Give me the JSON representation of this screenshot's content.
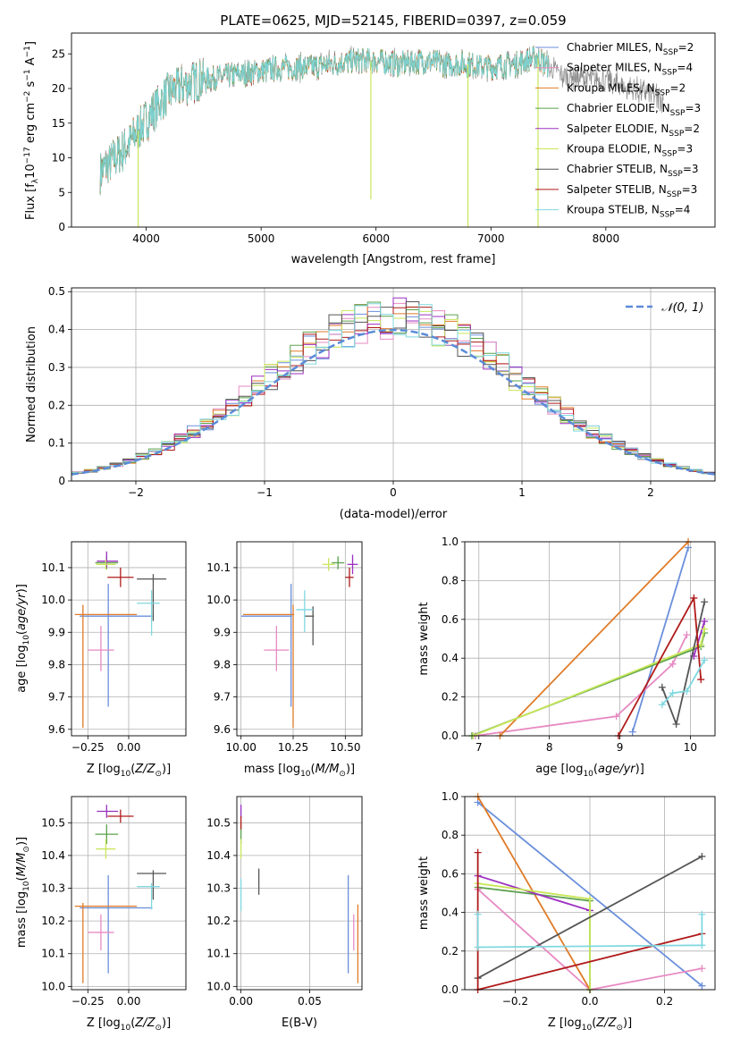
{
  "figure_title": "PLATE=0625, MJD=52145, FIBERID=0397, z=0.059",
  "colors": {
    "chabrier_miles": "#6a8fdb",
    "salpeter_miles": "#e78ac3",
    "kroupa_miles": "#e07b28",
    "chabrier_elodie": "#5aa04a",
    "salpeter_elodie": "#9b30c0",
    "kroupa_elodie": "#c8e65a",
    "chabrier_stelib": "#555555",
    "salpeter_stelib": "#b01a1a",
    "kroupa_stelib": "#7fd8e0",
    "gaussian": "#5b8bd8",
    "data_grey": "#808080"
  },
  "chart_data": [
    {
      "id": "spectrum",
      "type": "line",
      "xlabel": "wavelength [Angstrom, rest frame]",
      "ylabel": "Flux [f",
      "xlim": [
        3350,
        8950
      ],
      "ylim": [
        0,
        28
      ],
      "xticks": [
        4000,
        5000,
        6000,
        7000,
        8000
      ],
      "yticks": [
        0,
        5,
        10,
        15,
        20,
        25
      ],
      "legend": "upper right",
      "legend_entries": [
        {
          "name": "Chabrier MILES",
          "suffix": "=2"
        },
        {
          "name": "Salpeter MILES",
          "suffix": "=4"
        },
        {
          "name": "Kroupa MILES",
          "suffix": "=2"
        },
        {
          "name": "Chabrier ELODIE",
          "suffix": "=3"
        },
        {
          "name": "Salpeter ELODIE",
          "suffix": "=2"
        },
        {
          "name": "Kroupa ELODIE",
          "suffix": "=3"
        },
        {
          "name": "Chabrier STELIB",
          "suffix": "=3"
        },
        {
          "name": "Salpeter STELIB",
          "suffix": "=3"
        },
        {
          "name": "Kroupa STELIB",
          "suffix": "=4"
        }
      ],
      "continuum": {
        "x": [
          3600,
          3800,
          4000,
          4200,
          4400,
          4600,
          4800,
          5000,
          5200,
          5400,
          5600,
          5800,
          6000,
          6200,
          6400,
          6600,
          6800,
          7000,
          7200,
          7400,
          7600,
          7800,
          8000,
          8200,
          8400,
          8500
        ],
        "y": [
          8,
          11,
          15.5,
          19.5,
          21,
          21.5,
          22,
          22.5,
          23,
          23,
          23.5,
          24,
          24,
          23.5,
          24,
          23.5,
          23.5,
          23,
          23.5,
          24.5,
          22,
          21.5,
          21,
          20,
          19,
          18.5
        ]
      },
      "spikes": [
        {
          "x": 3930,
          "ymin": 0
        },
        {
          "x": 5955,
          "ymin": 4
        },
        {
          "x": 6800,
          "ymin": 0
        },
        {
          "x": 7410,
          "ymin": 0
        }
      ]
    },
    {
      "id": "residual_histogram",
      "type": "histogram",
      "xlabel": "(data-model)/error",
      "ylabel": "Normed distribution",
      "xlim": [
        -2.5,
        2.5
      ],
      "ylim": [
        0,
        0.51
      ],
      "xticks": [
        -2,
        -1,
        0,
        1,
        2
      ],
      "yticks": [
        0.0,
        0.1,
        0.2,
        0.3,
        0.4,
        0.5
      ],
      "grid": true,
      "legend": "upper right",
      "legend_label": "𝒩(0, 1)",
      "bin_width": 0.1
    },
    {
      "id": "age_vs_Z",
      "type": "scatter",
      "xlabel": "Z [log",
      "ylabel": "age  [log",
      "xlim": [
        -0.35,
        0.35
      ],
      "ylim": [
        9.58,
        10.18
      ],
      "xticks": [
        -0.25,
        0.0
      ],
      "yticks": [
        9.6,
        9.7,
        9.8,
        9.9,
        10.0,
        10.1
      ],
      "grid": true,
      "points": [
        {
          "key": "chabrier_miles",
          "x": -0.125,
          "y": 9.95,
          "xerr": [
            0.175,
            0.27
          ],
          "yerr": [
            0.28,
            0.1
          ]
        },
        {
          "key": "salpeter_miles",
          "x": -0.17,
          "y": 9.845,
          "xerr": [
            0.08,
            0.08
          ],
          "yerr": [
            0.065,
            0.075
          ]
        },
        {
          "key": "kroupa_miles",
          "x": -0.28,
          "y": 9.955,
          "xerr": [
            0.05,
            0.33
          ],
          "yerr": [
            0.35,
            0.03
          ]
        },
        {
          "key": "chabrier_elodie",
          "x": -0.135,
          "y": 10.115,
          "xerr": [
            0.07,
            0.07
          ],
          "yerr": [
            0.02,
            0.02
          ]
        },
        {
          "key": "salpeter_elodie",
          "x": -0.135,
          "y": 10.12,
          "xerr": [
            0.06,
            0.07
          ],
          "yerr": [
            0.02,
            0.03
          ]
        },
        {
          "key": "kroupa_elodie",
          "x": -0.14,
          "y": 10.11,
          "xerr": [
            0.06,
            0.06
          ],
          "yerr": [
            0.015,
            0.015
          ]
        },
        {
          "key": "chabrier_stelib",
          "x": 0.15,
          "y": 10.065,
          "xerr": [
            0.1,
            0.08
          ],
          "yerr": [
            0.13,
            0.015
          ]
        },
        {
          "key": "salpeter_stelib",
          "x": -0.05,
          "y": 10.07,
          "xerr": [
            0.08,
            0.08
          ],
          "yerr": [
            0.03,
            0.03
          ]
        },
        {
          "key": "kroupa_stelib",
          "x": 0.14,
          "y": 9.99,
          "xerr": [
            0.09,
            0.05
          ],
          "yerr": [
            0.1,
            0.04
          ]
        }
      ]
    },
    {
      "id": "age_vs_mass",
      "type": "scatter",
      "xlabel": "mass [log",
      "ylabel": "",
      "xlim": [
        9.98,
        10.58
      ],
      "ylim": [
        9.58,
        10.18
      ],
      "xticks": [
        10.0,
        10.25,
        10.5
      ],
      "yticks": [
        9.6,
        9.7,
        9.8,
        9.9,
        10.0,
        10.1
      ],
      "grid": true,
      "points": [
        {
          "key": "chabrier_miles",
          "x": 10.24,
          "y": 9.95,
          "xerr": [
            0.24,
            0.005
          ],
          "yerr": [
            0.28,
            0.1
          ]
        },
        {
          "key": "salpeter_miles",
          "x": 10.17,
          "y": 9.845,
          "xerr": [
            0.06,
            0.06
          ],
          "yerr": [
            0.065,
            0.075
          ]
        },
        {
          "key": "kroupa_miles",
          "x": 10.25,
          "y": 9.955,
          "xerr": [
            0.24,
            0.005
          ],
          "yerr": [
            0.35,
            0.03
          ]
        },
        {
          "key": "chabrier_elodie",
          "x": 10.465,
          "y": 10.115,
          "xerr": [
            0.03,
            0.03
          ],
          "yerr": [
            0.02,
            0.02
          ]
        },
        {
          "key": "salpeter_elodie",
          "x": 10.535,
          "y": 10.11,
          "xerr": [
            0.025,
            0.025
          ],
          "yerr": [
            0.03,
            0.03
          ]
        },
        {
          "key": "kroupa_elodie",
          "x": 10.42,
          "y": 10.11,
          "xerr": [
            0.03,
            0.03
          ],
          "yerr": [
            0.02,
            0.02
          ]
        },
        {
          "key": "chabrier_stelib",
          "x": 10.345,
          "y": 9.95,
          "xerr": [
            0.04,
            0.005
          ],
          "yerr": [
            0.09,
            0.03
          ]
        },
        {
          "key": "salpeter_stelib",
          "x": 10.52,
          "y": 10.07,
          "xerr": [
            0.02,
            0.02
          ],
          "yerr": [
            0.03,
            0.03
          ]
        },
        {
          "key": "kroupa_stelib",
          "x": 10.305,
          "y": 9.97,
          "xerr": [
            0.04,
            0.04
          ],
          "yerr": [
            0.07,
            0.06
          ]
        }
      ]
    },
    {
      "id": "mass_weight_vs_age",
      "type": "line",
      "xlabel": "age  [log",
      "ylabel": "mass weight",
      "xlim": [
        6.8,
        10.35
      ],
      "ylim": [
        0,
        1
      ],
      "xticks": [
        7,
        8,
        9,
        10
      ],
      "yticks": [
        0.0,
        0.2,
        0.4,
        0.6,
        0.8,
        1.0
      ],
      "grid": true,
      "series": [
        {
          "key": "chabrier_miles",
          "x": [
            9.18,
            9.97
          ],
          "y": [
            0.02,
            0.97
          ]
        },
        {
          "key": "salpeter_miles",
          "x": [
            6.95,
            8.95,
            9.75,
            9.95
          ],
          "y": [
            0.0,
            0.1,
            0.37,
            0.52
          ]
        },
        {
          "key": "kroupa_miles",
          "x": [
            7.3,
            9.97
          ],
          "y": [
            0.0,
            1.0
          ]
        },
        {
          "key": "chabrier_elodie",
          "x": [
            6.9,
            10.15,
            10.2
          ],
          "y": [
            0.0,
            0.46,
            0.53
          ]
        },
        {
          "key": "salpeter_elodie",
          "x": [
            10.05,
            10.2
          ],
          "y": [
            0.41,
            0.59
          ]
        },
        {
          "key": "kroupa_elodie",
          "x": [
            6.92,
            10.15,
            10.2
          ],
          "y": [
            0.0,
            0.47,
            0.55
          ]
        },
        {
          "key": "chabrier_stelib",
          "x": [
            9.6,
            9.8,
            10.2
          ],
          "y": [
            0.25,
            0.06,
            0.69
          ]
        },
        {
          "key": "salpeter_stelib",
          "x": [
            8.98,
            10.05,
            10.15
          ],
          "y": [
            0.0,
            0.71,
            0.29
          ]
        },
        {
          "key": "kroupa_stelib",
          "x": [
            9.6,
            9.75,
            9.95,
            10.2
          ],
          "y": [
            0.16,
            0.22,
            0.23,
            0.39
          ]
        }
      ]
    },
    {
      "id": "mass_vs_Z",
      "type": "scatter",
      "xlabel": "Z [log",
      "ylabel": "mass [log",
      "xlim": [
        -0.35,
        0.35
      ],
      "ylim": [
        9.99,
        10.58
      ],
      "xticks": [
        -0.25,
        0.0
      ],
      "yticks": [
        10.0,
        10.1,
        10.2,
        10.3,
        10.4,
        10.5
      ],
      "grid": true,
      "points": [
        {
          "key": "chabrier_miles",
          "x": -0.125,
          "y": 10.24,
          "xerr": [
            0.175,
            0.27
          ],
          "yerr": [
            0.2,
            0.1
          ]
        },
        {
          "key": "salpeter_miles",
          "x": -0.17,
          "y": 10.165,
          "xerr": [
            0.08,
            0.08
          ],
          "yerr": [
            0.055,
            0.055
          ]
        },
        {
          "key": "kroupa_miles",
          "x": -0.28,
          "y": 10.245,
          "xerr": [
            0.05,
            0.33
          ],
          "yerr": [
            0.235,
            0.01
          ]
        },
        {
          "key": "chabrier_elodie",
          "x": -0.135,
          "y": 10.465,
          "xerr": [
            0.07,
            0.07
          ],
          "yerr": [
            0.03,
            0.03
          ]
        },
        {
          "key": "salpeter_elodie",
          "x": -0.135,
          "y": 10.535,
          "xerr": [
            0.06,
            0.07
          ],
          "yerr": [
            0.02,
            0.02
          ]
        },
        {
          "key": "kroupa_elodie",
          "x": -0.14,
          "y": 10.42,
          "xerr": [
            0.06,
            0.06
          ],
          "yerr": [
            0.03,
            0.03
          ]
        },
        {
          "key": "chabrier_stelib",
          "x": 0.15,
          "y": 10.345,
          "xerr": [
            0.1,
            0.08
          ],
          "yerr": [
            0.08,
            0.01
          ]
        },
        {
          "key": "salpeter_stelib",
          "x": -0.05,
          "y": 10.52,
          "xerr": [
            0.08,
            0.08
          ],
          "yerr": [
            0.02,
            0.02
          ]
        },
        {
          "key": "kroupa_stelib",
          "x": 0.14,
          "y": 10.305,
          "xerr": [
            0.09,
            0.05
          ],
          "yerr": [
            0.07,
            0.01
          ]
        }
      ]
    },
    {
      "id": "mass_vs_ebv",
      "type": "scatter",
      "xlabel": "E(B-V)",
      "ylabel": "",
      "xlim": [
        -0.003,
        0.088
      ],
      "ylim": [
        9.99,
        10.58
      ],
      "xticks": [
        0.0,
        0.05
      ],
      "yticks": [
        10.0,
        10.1,
        10.2,
        10.3,
        10.4,
        10.5
      ],
      "grid": true,
      "points": [
        {
          "key": "chabrier_miles",
          "x": 0.078,
          "y": 10.24,
          "xerr": [
            0,
            0
          ],
          "yerr": [
            0.2,
            0.1
          ]
        },
        {
          "key": "salpeter_miles",
          "x": 0.082,
          "y": 10.165,
          "xerr": [
            0,
            0
          ],
          "yerr": [
            0.055,
            0.055
          ]
        },
        {
          "key": "kroupa_miles",
          "x": 0.085,
          "y": 10.13,
          "xerr": [
            0,
            0
          ],
          "yerr": [
            0.12,
            0.12
          ]
        },
        {
          "key": "chabrier_elodie",
          "x": 0.0,
          "y": 10.465,
          "xerr": [
            0,
            0
          ],
          "yerr": [
            0.03,
            0.03
          ]
        },
        {
          "key": "salpeter_elodie",
          "x": 0.0,
          "y": 10.535,
          "xerr": [
            0,
            0
          ],
          "yerr": [
            0.02,
            0.02
          ]
        },
        {
          "key": "kroupa_elodie",
          "x": 0.0,
          "y": 10.42,
          "xerr": [
            0,
            0
          ],
          "yerr": [
            0.03,
            0.03
          ]
        },
        {
          "key": "chabrier_stelib",
          "x": 0.013,
          "y": 10.32,
          "xerr": [
            0,
            0
          ],
          "yerr": [
            0.04,
            0.04
          ]
        },
        {
          "key": "salpeter_stelib",
          "x": 0.0,
          "y": 10.5,
          "xerr": [
            0,
            0
          ],
          "yerr": [
            0.02,
            0.02
          ]
        },
        {
          "key": "kroupa_stelib",
          "x": 0.0,
          "y": 10.28,
          "xerr": [
            0,
            0
          ],
          "yerr": [
            0.05,
            0.05
          ]
        }
      ]
    },
    {
      "id": "mass_weight_vs_Z",
      "type": "line",
      "xlabel": "Z [log",
      "ylabel": "mass weight",
      "xlim": [
        -0.335,
        0.335
      ],
      "ylim": [
        0,
        1
      ],
      "xticks": [
        -0.2,
        0.0,
        0.2
      ],
      "yticks": [
        0.0,
        0.2,
        0.4,
        0.6,
        0.8,
        1.0
      ],
      "grid": true,
      "series": [
        {
          "key": "chabrier_miles",
          "x": [
            -0.3,
            0.3
          ],
          "y": [
            0.97,
            0.02
          ]
        },
        {
          "key": "salpeter_miles",
          "x": [
            -0.3,
            0.0,
            0.3
          ],
          "y": [
            0.52,
            0.0,
            0.11
          ]
        },
        {
          "key": "kroupa_miles",
          "x": [
            -0.3,
            0.0
          ],
          "y": [
            1.0,
            0.0
          ]
        },
        {
          "key": "chabrier_elodie",
          "x": [
            -0.3,
            0.0,
            0.0
          ],
          "y": [
            0.53,
            0.46,
            0.0
          ]
        },
        {
          "key": "salpeter_elodie",
          "x": [
            -0.3,
            0.0
          ],
          "y": [
            0.59,
            0.41
          ]
        },
        {
          "key": "kroupa_elodie",
          "x": [
            -0.3,
            0.0,
            0.0
          ],
          "y": [
            0.55,
            0.47,
            0.0
          ]
        },
        {
          "key": "chabrier_stelib",
          "x": [
            -0.3,
            0.3
          ],
          "y": [
            0.06,
            0.69
          ]
        },
        {
          "key": "salpeter_stelib",
          "x": [
            -0.3,
            -0.3,
            0.3
          ],
          "y": [
            0.71,
            0.0,
            0.29
          ]
        },
        {
          "key": "kroupa_stelib",
          "x": [
            -0.3,
            -0.3,
            0.3,
            0.3
          ],
          "y": [
            0.39,
            0.22,
            0.23,
            0.39
          ]
        }
      ]
    }
  ]
}
